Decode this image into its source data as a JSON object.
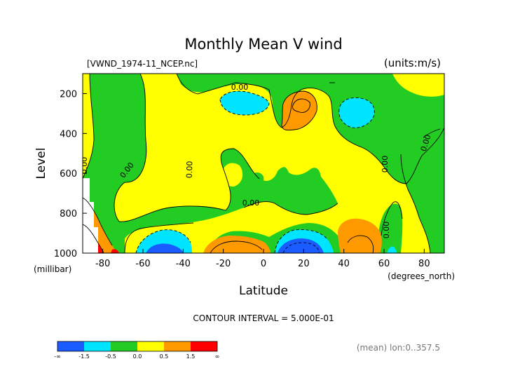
{
  "chart_data": {
    "type": "heatmap",
    "title": "Monthly Mean V wind",
    "file_label": "[VWND_1974-11_NCEP.nc]",
    "units_label": "(units:m/s)",
    "xlabel": "Latitude",
    "x_unit_label": "(degrees_north)",
    "ylabel": "Level",
    "y_unit_label": "(millibar)",
    "xlim": [
      -90,
      90
    ],
    "ylim": [
      1000,
      100
    ],
    "x_ticks": [
      -80,
      -60,
      -40,
      -20,
      0,
      20,
      40,
      60,
      80
    ],
    "y_ticks": [
      200,
      400,
      600,
      800,
      1000
    ],
    "contour_interval_text": "CONTOUR INTERVAL = 5.000E-01",
    "contour_label": "0.00",
    "footer_note": "(mean) lon:0..357.5",
    "colorbar": {
      "labels": [
        "-∞",
        "-1.5",
        "-0.5",
        "0.0",
        "0.5",
        "1.5",
        "∞"
      ],
      "colors": [
        "#1a5cff",
        "#00e5ff",
        "#22cc22",
        "#ffff00",
        "#ff9900",
        "#ff0000"
      ]
    },
    "colors": {
      "strong_neg": "#1a5cff",
      "neg": "#00e5ff",
      "near_zero_neg": "#22cc22",
      "near_zero_pos": "#ffff00",
      "pos": "#ff9900",
      "strong_pos": "#ff0000"
    }
  }
}
